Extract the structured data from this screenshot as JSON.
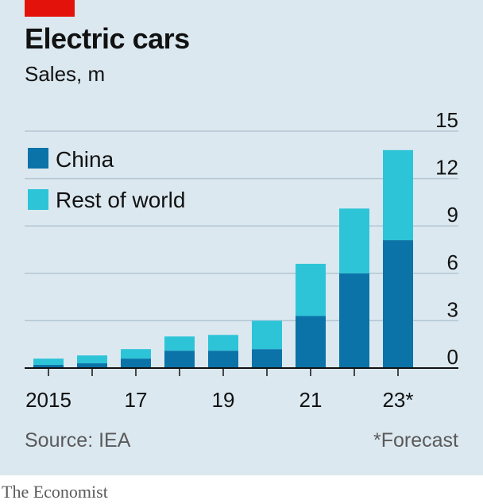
{
  "figure": {
    "title": "Electric cars",
    "subtitle": "Sales, m",
    "source": "Source: IEA",
    "footnote": "*Forecast",
    "brand": "The Economist",
    "colors": {
      "background": "#dbe8f0",
      "brand_red": "#e3120b",
      "china": "#0b73a8",
      "rest_of_world": "#2ec4d8",
      "gridline": "#b3c6d3",
      "axis": "#121212"
    }
  },
  "chart_data": {
    "type": "bar",
    "stacked": true,
    "x": [
      2015,
      2016,
      2017,
      2018,
      2019,
      2020,
      2021,
      2022,
      2023
    ],
    "x_tick_labels": [
      {
        "x": 2015,
        "label": "2015"
      },
      {
        "x": 2017,
        "label": "17"
      },
      {
        "x": 2019,
        "label": "19"
      },
      {
        "x": 2021,
        "label": "21"
      },
      {
        "x": 2023,
        "label": "23*"
      }
    ],
    "series": [
      {
        "name": "China",
        "color": "#0b73a8",
        "values": [
          0.2,
          0.3,
          0.6,
          1.1,
          1.1,
          1.2,
          3.3,
          6.0,
          8.1
        ]
      },
      {
        "name": "Rest of world",
        "color": "#2ec4d8",
        "values": [
          0.4,
          0.5,
          0.6,
          0.9,
          1.0,
          1.8,
          3.3,
          4.1,
          5.7
        ]
      }
    ],
    "ylim": [
      0,
      15
    ],
    "y_ticks": [
      0,
      3,
      6,
      9,
      12,
      15
    ],
    "y_axis_side": "right",
    "grid": true,
    "legend_position": "top-left"
  }
}
